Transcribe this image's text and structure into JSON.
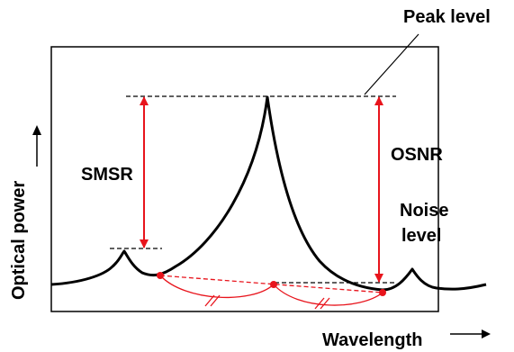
{
  "labels": {
    "peak_level": "Peak level",
    "smsr": "SMSR",
    "osnr": "OSNR",
    "noise_level_line1": "Noise",
    "noise_level_line2": "level",
    "x_axis": "Wavelength",
    "y_axis": "Optical power"
  },
  "colors": {
    "annotation": "#e8141c",
    "curve": "#000000",
    "frame": "#000000"
  }
}
